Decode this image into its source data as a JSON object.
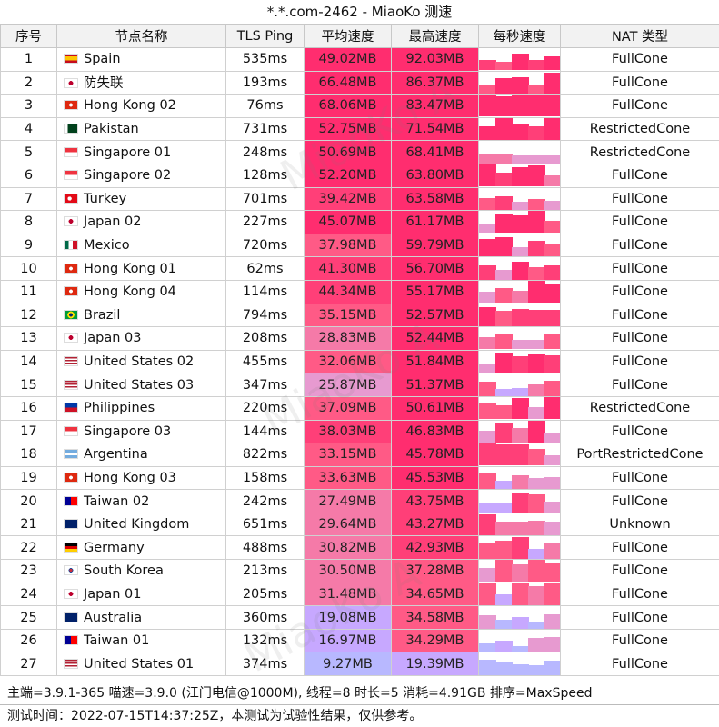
{
  "title": "*.*.com-2462 - MiaoKo 测速",
  "headers": [
    "序号",
    "节点名称",
    "TLS Ping",
    "平均速度",
    "最高速度",
    "每秒速度",
    "NAT 类型"
  ],
  "rows": [
    {
      "idx": "1",
      "flag": "es",
      "name": "Spain",
      "ping": "535ms",
      "avg": "49.02MB",
      "max": "92.03MB",
      "nat": "FullCone",
      "avgv": 49.02,
      "maxv": 92.03
    },
    {
      "idx": "2",
      "flag": "jp",
      "name": "防失联",
      "ping": "193ms",
      "avg": "66.48MB",
      "max": "86.37MB",
      "nat": "FullCone",
      "avgv": 66.48,
      "maxv": 86.37
    },
    {
      "idx": "3",
      "flag": "hk",
      "name": "Hong Kong 02",
      "ping": "76ms",
      "avg": "68.06MB",
      "max": "83.47MB",
      "nat": "FullCone",
      "avgv": 68.06,
      "maxv": 83.47
    },
    {
      "idx": "4",
      "flag": "pk",
      "name": "Pakistan",
      "ping": "731ms",
      "avg": "52.75MB",
      "max": "71.54MB",
      "nat": "RestrictedCone",
      "avgv": 52.75,
      "maxv": 71.54
    },
    {
      "idx": "5",
      "flag": "sg",
      "name": "Singapore 01",
      "ping": "248ms",
      "avg": "50.69MB",
      "max": "68.41MB",
      "nat": "RestrictedCone",
      "avgv": 50.69,
      "maxv": 68.41
    },
    {
      "idx": "6",
      "flag": "sg",
      "name": "Singapore 02",
      "ping": "128ms",
      "avg": "52.20MB",
      "max": "63.80MB",
      "nat": "FullCone",
      "avgv": 52.2,
      "maxv": 63.8
    },
    {
      "idx": "7",
      "flag": "tr",
      "name": "Turkey",
      "ping": "701ms",
      "avg": "39.42MB",
      "max": "63.58MB",
      "nat": "FullCone",
      "avgv": 39.42,
      "maxv": 63.58
    },
    {
      "idx": "8",
      "flag": "jp",
      "name": "Japan 02",
      "ping": "227ms",
      "avg": "45.07MB",
      "max": "61.17MB",
      "nat": "FullCone",
      "avgv": 45.07,
      "maxv": 61.17
    },
    {
      "idx": "9",
      "flag": "mx",
      "name": "Mexico",
      "ping": "720ms",
      "avg": "37.98MB",
      "max": "59.79MB",
      "nat": "FullCone",
      "avgv": 37.98,
      "maxv": 59.79
    },
    {
      "idx": "10",
      "flag": "hk",
      "name": "Hong Kong 01",
      "ping": "62ms",
      "avg": "41.30MB",
      "max": "56.70MB",
      "nat": "FullCone",
      "avgv": 41.3,
      "maxv": 56.7
    },
    {
      "idx": "11",
      "flag": "hk",
      "name": "Hong Kong 04",
      "ping": "114ms",
      "avg": "44.34MB",
      "max": "55.17MB",
      "nat": "FullCone",
      "avgv": 44.34,
      "maxv": 55.17
    },
    {
      "idx": "12",
      "flag": "br",
      "name": "Brazil",
      "ping": "794ms",
      "avg": "35.15MB",
      "max": "52.57MB",
      "nat": "FullCone",
      "avgv": 35.15,
      "maxv": 52.57
    },
    {
      "idx": "13",
      "flag": "jp",
      "name": "Japan 03",
      "ping": "208ms",
      "avg": "28.83MB",
      "max": "52.44MB",
      "nat": "FullCone",
      "avgv": 28.83,
      "maxv": 52.44
    },
    {
      "idx": "14",
      "flag": "us",
      "name": "United States 02",
      "ping": "455ms",
      "avg": "32.06MB",
      "max": "51.84MB",
      "nat": "FullCone",
      "avgv": 32.06,
      "maxv": 51.84
    },
    {
      "idx": "15",
      "flag": "us",
      "name": "United States 03",
      "ping": "347ms",
      "avg": "25.87MB",
      "max": "51.37MB",
      "nat": "FullCone",
      "avgv": 25.87,
      "maxv": 51.37
    },
    {
      "idx": "16",
      "flag": "ph",
      "name": "Philippines",
      "ping": "220ms",
      "avg": "37.09MB",
      "max": "50.61MB",
      "nat": "RestrictedCone",
      "avgv": 37.09,
      "maxv": 50.61
    },
    {
      "idx": "17",
      "flag": "sg",
      "name": "Singapore 03",
      "ping": "144ms",
      "avg": "38.03MB",
      "max": "46.83MB",
      "nat": "FullCone",
      "avgv": 38.03,
      "maxv": 46.83
    },
    {
      "idx": "18",
      "flag": "ar",
      "name": "Argentina",
      "ping": "822ms",
      "avg": "33.15MB",
      "max": "45.78MB",
      "nat": "PortRestrictedCone",
      "avgv": 33.15,
      "maxv": 45.78
    },
    {
      "idx": "19",
      "flag": "hk",
      "name": "Hong Kong 03",
      "ping": "158ms",
      "avg": "33.63MB",
      "max": "45.53MB",
      "nat": "FullCone",
      "avgv": 33.63,
      "maxv": 45.53
    },
    {
      "idx": "20",
      "flag": "tw",
      "name": "Taiwan 02",
      "ping": "242ms",
      "avg": "27.49MB",
      "max": "43.75MB",
      "nat": "FullCone",
      "avgv": 27.49,
      "maxv": 43.75
    },
    {
      "idx": "21",
      "flag": "gb",
      "name": "United Kingdom",
      "ping": "651ms",
      "avg": "29.64MB",
      "max": "43.27MB",
      "nat": "Unknown",
      "avgv": 29.64,
      "maxv": 43.27
    },
    {
      "idx": "22",
      "flag": "de",
      "name": "Germany",
      "ping": "488ms",
      "avg": "30.82MB",
      "max": "42.93MB",
      "nat": "FullCone",
      "avgv": 30.82,
      "maxv": 42.93
    },
    {
      "idx": "23",
      "flag": "kr",
      "name": "South Korea",
      "ping": "213ms",
      "avg": "30.50MB",
      "max": "37.28MB",
      "nat": "FullCone",
      "avgv": 30.5,
      "maxv": 37.28
    },
    {
      "idx": "24",
      "flag": "jp",
      "name": "Japan 01",
      "ping": "205ms",
      "avg": "31.48MB",
      "max": "34.65MB",
      "nat": "FullCone",
      "avgv": 31.48,
      "maxv": 34.65
    },
    {
      "idx": "25",
      "flag": "au",
      "name": "Australia",
      "ping": "360ms",
      "avg": "19.08MB",
      "max": "34.58MB",
      "nat": "FullCone",
      "avgv": 19.08,
      "maxv": 34.58
    },
    {
      "idx": "26",
      "flag": "tw",
      "name": "Taiwan 01",
      "ping": "132ms",
      "avg": "16.97MB",
      "max": "34.29MB",
      "nat": "FullCone",
      "avgv": 16.97,
      "maxv": 34.29
    },
    {
      "idx": "27",
      "flag": "us",
      "name": "United States 01",
      "ping": "374ms",
      "avg": "9.27MB",
      "max": "19.39MB",
      "nat": "FullCone",
      "avgv": 9.27,
      "maxv": 19.39
    }
  ],
  "footer_info": "主端=3.9.1-365 喵速=3.9.0 (江门电信@1000M), 线程=8 时长=5 消耗=4.91GB 排序=MaxSpeed",
  "footer_time": "测试时间：2022-07-15T14:37:25Z，本测试为试验性结果，仅供参考。",
  "watermark": "MiaoKo A",
  "colors": {
    "high": "#ff2d6f",
    "mid": "#ff6b7f",
    "low": "#b8a4ff",
    "grid": "#d0d0d0"
  }
}
